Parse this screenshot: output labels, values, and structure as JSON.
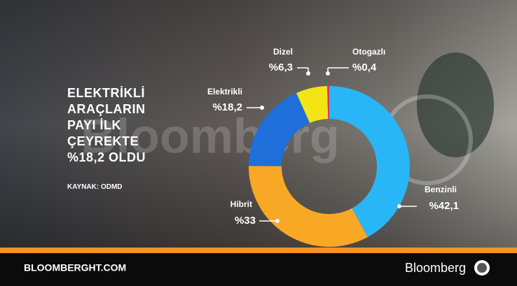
{
  "chart_data": {
    "type": "donut",
    "title": "ELEKTRİKLİ ARAÇLARIN PAYI İLK ÇEYREKTE %18,2 OLDU",
    "source": "KAYNAK: ODMD",
    "categories": [
      "Benzinli",
      "Hibrit",
      "Elektrikli",
      "Dizel",
      "Otogazlı"
    ],
    "values": [
      42.1,
      33,
      18.2,
      6.3,
      0.4
    ],
    "value_labels": [
      "%42,1",
      "%33",
      "%18,2",
      "%6,3",
      "%0,4"
    ],
    "colors": [
      "#29b6f6",
      "#f9a825",
      "#1e6fd9",
      "#f3e514",
      "#e0306a"
    ]
  },
  "watermark": "Bloomberg",
  "footer": {
    "site": "BLOOMBERGHT.COM",
    "brand": "Bloomberg"
  }
}
